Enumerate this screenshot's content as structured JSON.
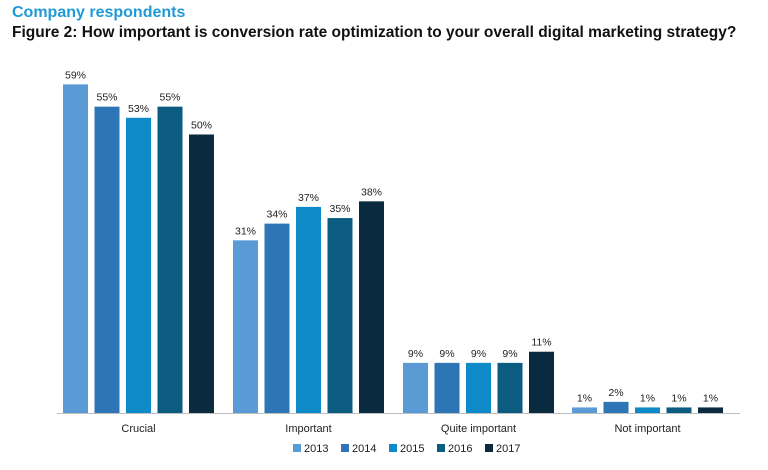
{
  "header": {
    "subtitle": "Company respondents",
    "title": "Figure 2: How important is conversion rate optimization to your overall digital marketing strategy?"
  },
  "chart_data": {
    "type": "bar",
    "title": "Figure 2: How important is conversion rate optimization to your overall digital marketing strategy?",
    "subtitle": "Company respondents",
    "xlabel": "",
    "ylabel": "",
    "ylim": [
      0,
      60
    ],
    "grid": false,
    "legend_position": "bottom",
    "value_suffix": "%",
    "categories": [
      "Crucial",
      "Important",
      "Quite important",
      "Not important"
    ],
    "series": [
      {
        "name": "2013",
        "color": "#5b9bd5",
        "values": [
          59,
          31,
          9,
          1
        ]
      },
      {
        "name": "2014",
        "color": "#2e75b6",
        "values": [
          55,
          34,
          9,
          2
        ]
      },
      {
        "name": "2015",
        "color": "#0e8ac8",
        "values": [
          53,
          37,
          9,
          1
        ]
      },
      {
        "name": "2016",
        "color": "#0b5c80",
        "values": [
          55,
          35,
          9,
          1
        ]
      },
      {
        "name": "2017",
        "color": "#0a2a3f",
        "values": [
          50,
          38,
          11,
          1
        ]
      }
    ]
  }
}
